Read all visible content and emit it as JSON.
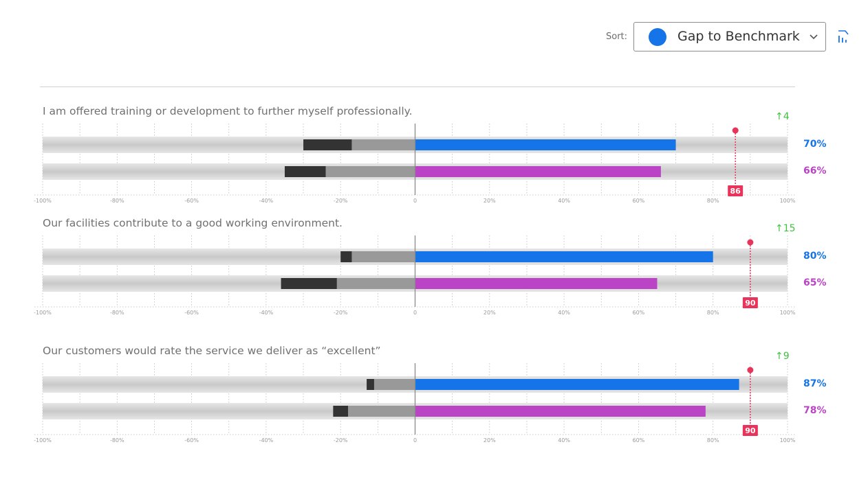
{
  "sort": {
    "label": "Sort:",
    "selected": "Gap to Benchmark",
    "dot_color": "#1574e8",
    "chevron_icon": "chevron-down-icon",
    "direction_icon": "sort-direction-icon"
  },
  "colors": {
    "series_a": "#1574e8",
    "series_b": "#bb44c6",
    "benchmark": "#e8345a",
    "trend": "#3ec13e",
    "negative_strong": "#333333",
    "negative_light": "#999999"
  },
  "chart_data": [
    {
      "type": "bar",
      "title": "I am offered training or development to further myself professionally.",
      "x_range": [
        -100,
        100
      ],
      "tick_labels": [
        "-100%",
        "-80%",
        "-60%",
        "-40%",
        "-20%",
        "0",
        "20%",
        "40%",
        "60%",
        "80%",
        "100%"
      ],
      "series": [
        {
          "positive": 70,
          "negative_light": -17,
          "negative_dark": -30,
          "label": "70%"
        },
        {
          "positive": 66,
          "negative_light": -24,
          "negative_dark": -35,
          "label": "66%"
        }
      ],
      "benchmark": {
        "value": 86,
        "label": "86"
      },
      "trend": "↑4"
    },
    {
      "type": "bar",
      "title": "Our facilities contribute to a good working environment.",
      "x_range": [
        -100,
        100
      ],
      "tick_labels": [
        "-100%",
        "-80%",
        "-60%",
        "-40%",
        "-20%",
        "0",
        "20%",
        "40%",
        "60%",
        "80%",
        "100%"
      ],
      "series": [
        {
          "positive": 80,
          "negative_light": -17,
          "negative_dark": -20,
          "label": "80%"
        },
        {
          "positive": 65,
          "negative_light": -21,
          "negative_dark": -36,
          "label": "65%"
        }
      ],
      "benchmark": {
        "value": 90,
        "label": "90"
      },
      "trend": "↑15"
    },
    {
      "type": "bar",
      "title": "Our customers would rate the service we deliver as “excellent”",
      "x_range": [
        -100,
        100
      ],
      "tick_labels": [
        "-100%",
        "-80%",
        "-60%",
        "-40%",
        "-20%",
        "0",
        "20%",
        "40%",
        "60%",
        "80%",
        "100%"
      ],
      "series": [
        {
          "positive": 87,
          "negative_light": -11,
          "negative_dark": -13,
          "label": "87%"
        },
        {
          "positive": 78,
          "negative_light": -18,
          "negative_dark": -22,
          "label": "78%"
        }
      ],
      "benchmark": {
        "value": 90,
        "label": "90"
      },
      "trend": "↑9"
    }
  ]
}
